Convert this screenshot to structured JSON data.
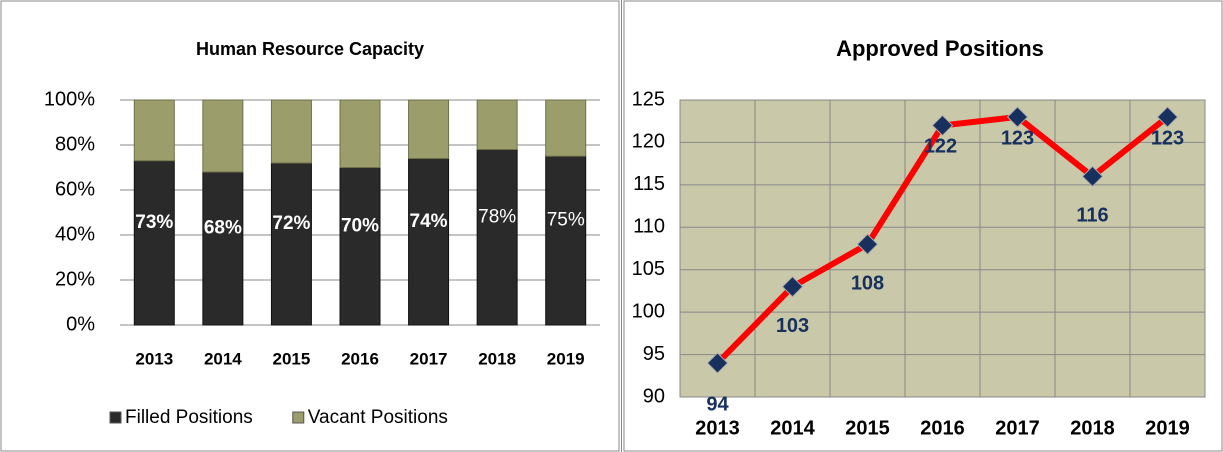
{
  "chart_data": [
    {
      "type": "stacked_bar",
      "title": "Human Resource Capacity",
      "categories": [
        "2013",
        "2014",
        "2015",
        "2016",
        "2017",
        "2018",
        "2019"
      ],
      "series": [
        {
          "name": "Filled Positions",
          "color": "#2a2a2a",
          "values": [
            73,
            68,
            72,
            70,
            74,
            78,
            75
          ],
          "value_labels": [
            "73%",
            "68%",
            "72%",
            "70%",
            "74%",
            "78%",
            "75%"
          ]
        },
        {
          "name": "Vacant Positions",
          "color": "#9b9d6b",
          "values": [
            27,
            32,
            28,
            30,
            26,
            22,
            25
          ]
        }
      ],
      "ylim": [
        0,
        100
      ],
      "yticks": [
        {
          "value": 0,
          "label": "0%"
        },
        {
          "value": 20,
          "label": "20%"
        },
        {
          "value": 40,
          "label": "40%"
        },
        {
          "value": 60,
          "label": "60%"
        },
        {
          "value": 80,
          "label": "80%"
        },
        {
          "value": 100,
          "label": "100%"
        }
      ],
      "grid": true,
      "legend": "bottom"
    },
    {
      "type": "line",
      "title": "Approved Positions",
      "categories": [
        "2013",
        "2014",
        "2015",
        "2016",
        "2017",
        "2018",
        "2019"
      ],
      "series": [
        {
          "name": "Approved Positions",
          "color": "#ff0000",
          "marker_color": "#17305e",
          "values": [
            94,
            103,
            108,
            122,
            123,
            116,
            123
          ]
        }
      ],
      "ylim": [
        90,
        125
      ],
      "yticks": [
        90,
        95,
        100,
        105,
        110,
        115,
        120,
        125
      ],
      "grid": true,
      "background": "#c9c9aa"
    }
  ]
}
